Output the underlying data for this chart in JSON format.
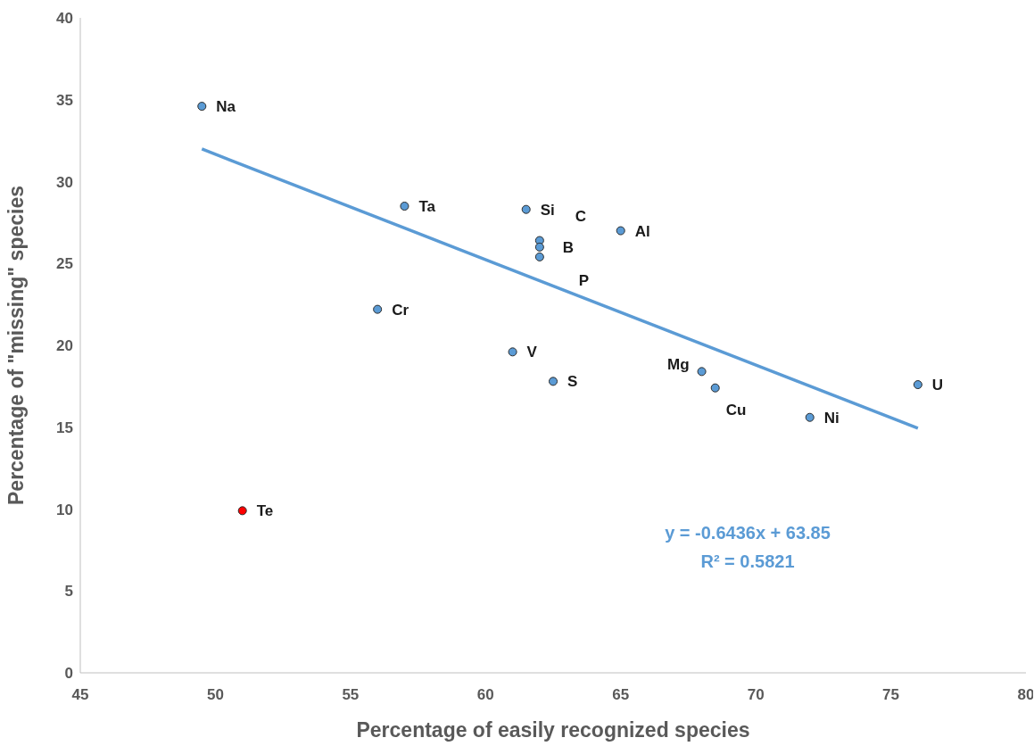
{
  "chart_data": {
    "type": "scatter",
    "xlabel": "Percentage of easily recognized species",
    "ylabel": "Percentage of \"missing\" species",
    "xlim": [
      45,
      80
    ],
    "xticks": [
      45,
      50,
      55,
      60,
      65,
      70,
      75,
      80
    ],
    "ylim": [
      0,
      40
    ],
    "yticks": [
      0,
      5,
      10,
      15,
      20,
      25,
      30,
      35,
      40
    ],
    "grid": false,
    "series": [
      {
        "type": "scatter",
        "marker": "circle",
        "x": [
          49.5,
          57,
          61.5,
          62,
          62,
          62,
          65,
          56,
          61,
          62.5,
          68,
          68.5,
          72,
          76,
          51
        ],
        "values": [
          34.6,
          28.5,
          28.3,
          26.4,
          26.0,
          25.4,
          27.0,
          22.2,
          19.6,
          17.8,
          18.4,
          17.4,
          15.6,
          17.6,
          9.9
        ],
        "colors": [
          "#5b9bd5",
          "#5b9bd5",
          "#5b9bd5",
          "#5b9bd5",
          "#5b9bd5",
          "#5b9bd5",
          "#5b9bd5",
          "#5b9bd5",
          "#5b9bd5",
          "#5b9bd5",
          "#5b9bd5",
          "#5b9bd5",
          "#5b9bd5",
          "#5b9bd5",
          "#ff0000"
        ]
      },
      {
        "type": "line",
        "marker": "none",
        "x": [
          49.5,
          76
        ],
        "values": [
          31.99,
          14.94
        ],
        "color": "#5b9bd5"
      }
    ],
    "annotations": [
      {
        "text": "Na",
        "x": 49.5,
        "y": 34.6
      },
      {
        "text": "Ta",
        "x": 57,
        "y": 28.5
      },
      {
        "text": "Si",
        "x": 61.5,
        "y": 28.3
      },
      {
        "text": "C",
        "x": 62,
        "y": 26.4
      },
      {
        "text": "B",
        "x": 62,
        "y": 26.0
      },
      {
        "text": "P",
        "x": 62,
        "y": 25.4
      },
      {
        "text": "Al",
        "x": 65,
        "y": 27.0
      },
      {
        "text": "Cr",
        "x": 56,
        "y": 22.2
      },
      {
        "text": "V",
        "x": 61,
        "y": 19.6
      },
      {
        "text": "S",
        "x": 62.5,
        "y": 17.8
      },
      {
        "text": "Mg",
        "x": 68,
        "y": 18.4
      },
      {
        "text": "Cu",
        "x": 68.5,
        "y": 17.4
      },
      {
        "text": "Ni",
        "x": 72,
        "y": 15.6
      },
      {
        "text": "U",
        "x": 76,
        "y": 17.6
      },
      {
        "text": "Te",
        "x": 51,
        "y": 9.9
      },
      "y = -0.6436x + 63.85",
      "R² = 0.5821"
    ]
  }
}
